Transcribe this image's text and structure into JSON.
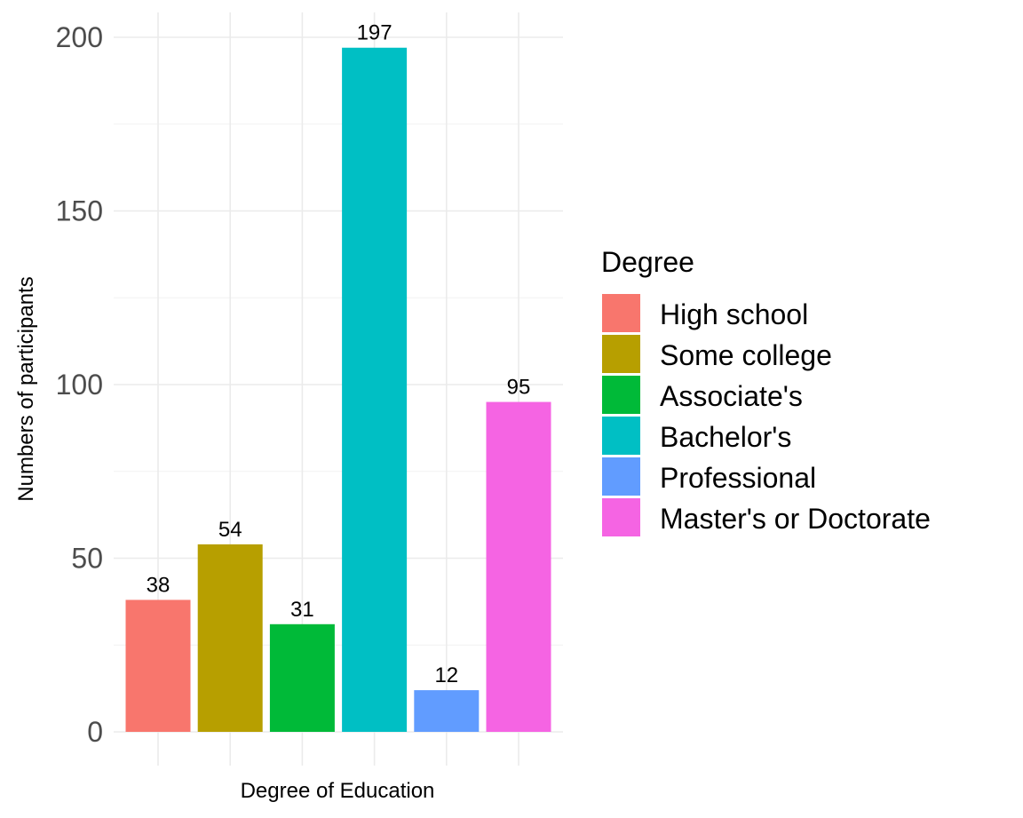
{
  "chart_data": {
    "type": "bar",
    "title": "",
    "xlabel": "Degree of Education",
    "ylabel": "Numbers of participants",
    "ylim": [
      0,
      200
    ],
    "y_ticks": [
      0,
      50,
      100,
      150,
      200
    ],
    "grid": true,
    "categories": [
      "High school",
      "Some college",
      "Associate's",
      "Bachelor's",
      "Professional",
      "Master's or Doctorate"
    ],
    "values": [
      38,
      54,
      31,
      197,
      12,
      95
    ],
    "colors": [
      "#F8766D",
      "#B79F00",
      "#00BA38",
      "#00BFC4",
      "#619CFF",
      "#F564E3"
    ],
    "legend": {
      "title": "Degree",
      "position": "right",
      "entries": [
        "High school",
        "Some college",
        "Associate's",
        "Bachelor's",
        "Professional",
        "Master's or Doctorate"
      ]
    }
  }
}
